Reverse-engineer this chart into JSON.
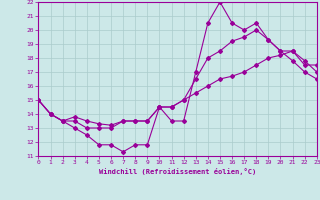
{
  "xlabel": "Windchill (Refroidissement éolien,°C)",
  "bg_color": "#cce8e8",
  "line_color": "#990099",
  "grid_color": "#aacccc",
  "xmin": 0,
  "xmax": 23,
  "ymin": 11,
  "ymax": 22,
  "line1_x": [
    0,
    1,
    2,
    3,
    4,
    5,
    6,
    7,
    8,
    9,
    10,
    11,
    12,
    13,
    14,
    15,
    16,
    17,
    18,
    19,
    20,
    21,
    22,
    23
  ],
  "line1_y": [
    15,
    14,
    13.5,
    13,
    12.5,
    11.8,
    11.8,
    11.3,
    11.8,
    11.8,
    14.5,
    13.5,
    13.5,
    17,
    20.5,
    22,
    20.5,
    20,
    20.5,
    19.3,
    18.5,
    17.8,
    17.0,
    16.5
  ],
  "line2_x": [
    0,
    1,
    2,
    3,
    4,
    5,
    6,
    7,
    8,
    9,
    10,
    11,
    12,
    13,
    14,
    15,
    16,
    17,
    18,
    19,
    20,
    21,
    22,
    23
  ],
  "line2_y": [
    15,
    14,
    13.5,
    13.8,
    13.5,
    13.3,
    13.2,
    13.5,
    13.5,
    13.5,
    14.5,
    14.5,
    15.0,
    16.5,
    18.0,
    18.5,
    19.2,
    19.5,
    20.0,
    19.3,
    18.5,
    18.5,
    17.8,
    17.0
  ],
  "line3_x": [
    0,
    1,
    2,
    3,
    4,
    5,
    6,
    7,
    8,
    9,
    10,
    11,
    12,
    13,
    14,
    15,
    16,
    17,
    18,
    19,
    20,
    21,
    22,
    23
  ],
  "line3_y": [
    15,
    14,
    13.5,
    13.5,
    13.0,
    13.0,
    13.0,
    13.5,
    13.5,
    13.5,
    14.5,
    14.5,
    15.0,
    15.5,
    16.0,
    16.5,
    16.7,
    17.0,
    17.5,
    18.0,
    18.2,
    18.5,
    17.5,
    17.5
  ]
}
